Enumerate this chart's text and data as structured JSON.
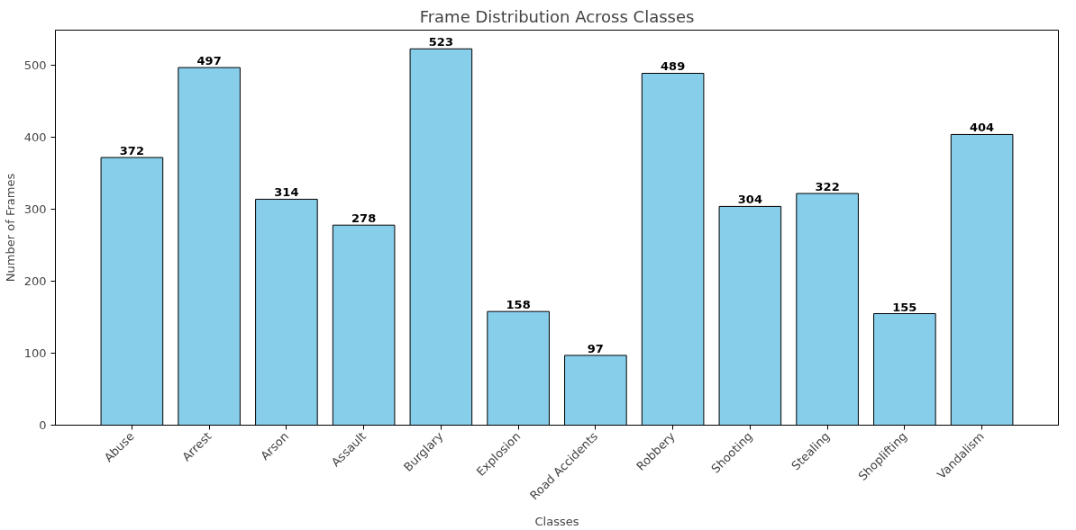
{
  "chart_data": {
    "type": "bar",
    "title": "Frame Distribution Across Classes",
    "xlabel": "Classes",
    "ylabel": "Number of Frames",
    "categories": [
      "Abuse",
      "Arrest",
      "Arson",
      "Assault",
      "Burglary",
      "Explosion",
      "Road Accidents",
      "Robbery",
      "Shooting",
      "Stealing",
      "Shoplifting",
      "Vandalism"
    ],
    "values": [
      372,
      497,
      314,
      278,
      523,
      158,
      97,
      489,
      304,
      322,
      155,
      404
    ],
    "color": "#87ceeb",
    "ylim": [
      0,
      549
    ],
    "yticks": [
      0,
      100,
      200,
      300,
      400,
      500
    ],
    "data_labels": true,
    "grid": false
  }
}
